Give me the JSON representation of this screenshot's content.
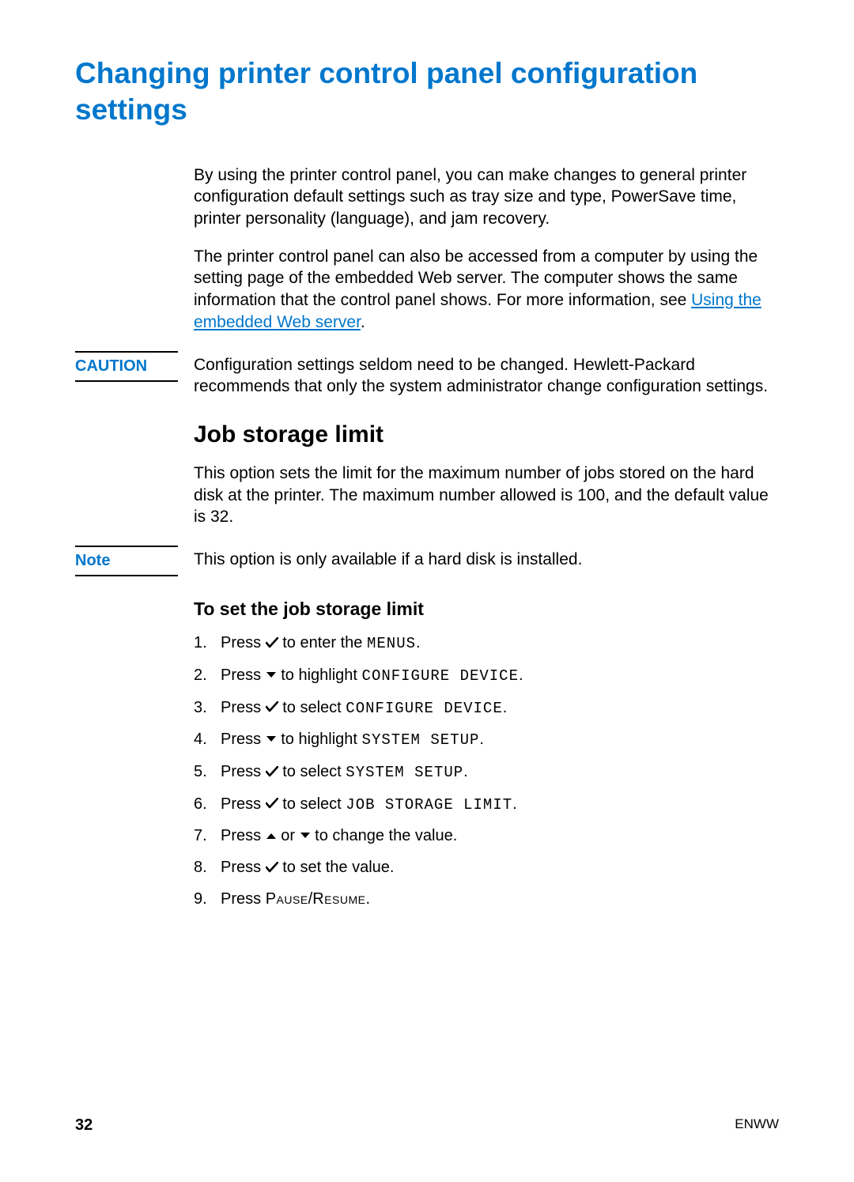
{
  "colors": {
    "accent": "#0077cc",
    "text": "#000000",
    "background": "#ffffff"
  },
  "title": "Changing printer control panel configuration settings",
  "intro": {
    "p1": "By using the printer control panel, you can make changes to general printer configuration default settings such as tray size and type, PowerSave time, printer personality (language), and jam recovery.",
    "p2_a": "The printer control panel can also be accessed from a computer by using the setting page of the embedded Web server. The computer shows the same information that the control panel shows. For more information, see ",
    "p2_link": "Using the embedded Web server",
    "p2_b": "."
  },
  "caution": {
    "label": "CAUTION",
    "text": "Configuration settings seldom need to be changed. Hewlett-Packard recommends that only the system administrator change configuration settings."
  },
  "section": {
    "heading": "Job storage limit",
    "p1": "This option sets the limit for the maximum number of jobs stored on the hard disk at the printer. The maximum number allowed is 100, and the default value is 32."
  },
  "note": {
    "label": "Note",
    "text": "This option is only available if a hard disk is installed."
  },
  "procedure": {
    "heading": "To set the job storage limit",
    "steps": [
      {
        "pre": "Press ",
        "icon": "check",
        "post": " to enter the ",
        "lcd": "MENUS",
        "end": "."
      },
      {
        "pre": "Press ",
        "icon": "down",
        "post": " to highlight ",
        "lcd": "CONFIGURE DEVICE",
        "end": "."
      },
      {
        "pre": "Press ",
        "icon": "check",
        "post": " to select ",
        "lcd": "CONFIGURE DEVICE",
        "end": "."
      },
      {
        "pre": "Press ",
        "icon": "down",
        "post": " to highlight ",
        "lcd": "SYSTEM SETUP",
        "end": "."
      },
      {
        "pre": "Press ",
        "icon": "check",
        "post": " to select ",
        "lcd": "SYSTEM SETUP",
        "end": "."
      },
      {
        "pre": "Press ",
        "icon": "check",
        "post": " to select ",
        "lcd": "JOB STORAGE LIMIT",
        "end": "."
      },
      {
        "pre": "Press ",
        "icon": "up",
        "mid": " or ",
        "icon2": "down",
        "post": " to change the value.",
        "lcd": "",
        "end": ""
      },
      {
        "pre": "Press ",
        "icon": "check",
        "post": " to set the value.",
        "lcd": "",
        "end": ""
      },
      {
        "pre": "Press ",
        "icon": "",
        "post": "",
        "lcd": "",
        "smallcaps_a": "Pause",
        "sep": "/",
        "smallcaps_b": "Resume",
        "end": "."
      }
    ]
  },
  "footer": {
    "page": "32",
    "right": "ENWW"
  }
}
